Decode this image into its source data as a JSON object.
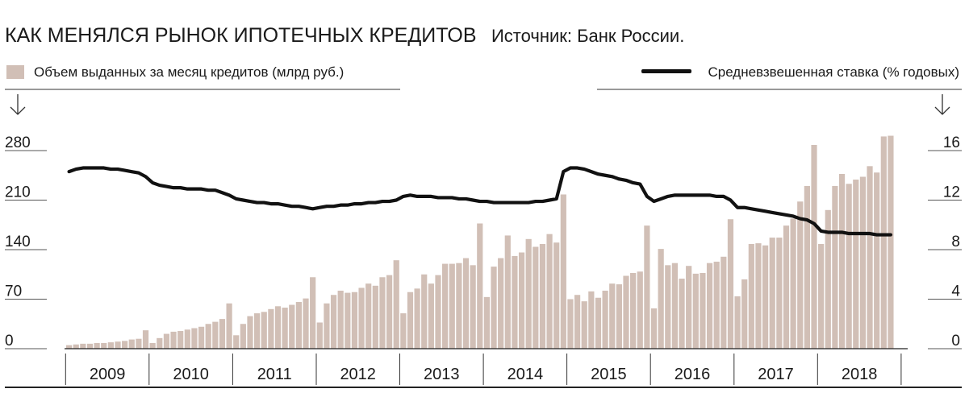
{
  "header": {
    "title": "КАК МЕНЯЛСЯ РЫНОК ИПОТЕЧНЫХ КРЕДИТОВ",
    "source": "Источник: Банк России."
  },
  "legend": {
    "bars_label": "Объем выданных за месяц кредитов (млрд руб.)",
    "line_label": "Средневзвешенная ставка (% годовых)"
  },
  "colors": {
    "bars": "#d1bfb6",
    "line": "#111111",
    "axis": "#333333"
  },
  "chart_data": {
    "type": "bar+line",
    "years": [
      "2009",
      "2010",
      "2011",
      "2012",
      "2013",
      "2014",
      "2015",
      "2016",
      "2017",
      "2018"
    ],
    "left_axis": {
      "ticks": [
        0,
        70,
        140,
        210,
        280
      ],
      "ylim": [
        0,
        280
      ]
    },
    "right_axis": {
      "ticks": [
        0,
        4,
        8,
        12,
        16
      ],
      "ylim": [
        0,
        16
      ]
    },
    "series": [
      {
        "kind": "bar",
        "values": [
          5,
          6,
          7,
          7,
          8,
          8,
          9,
          10,
          11,
          13,
          14,
          26,
          8,
          15,
          21,
          24,
          25,
          27,
          29,
          31,
          35,
          38,
          42,
          64,
          19,
          35,
          46,
          50,
          52,
          56,
          60,
          58,
          62,
          66,
          71,
          101,
          37,
          64,
          76,
          82,
          79,
          80,
          86,
          92,
          89,
          101,
          104,
          125,
          50,
          80,
          85,
          105,
          92,
          104,
          120,
          120,
          121,
          128,
          118,
          177,
          73,
          116,
          128,
          160,
          131,
          136,
          155,
          144,
          148,
          162,
          150,
          218,
          70,
          76,
          67,
          81,
          72,
          82,
          92,
          91,
          103,
          107,
          109,
          174,
          57,
          141,
          118,
          121,
          99,
          117,
          106,
          107,
          121,
          123,
          130,
          183,
          74,
          98,
          148,
          149,
          146,
          157,
          157,
          174,
          184,
          208,
          230,
          288,
          148,
          196,
          230,
          247,
          233,
          239,
          243,
          258,
          249,
          300,
          301
        ]
      },
      {
        "kind": "line",
        "values": [
          14.3,
          14.5,
          14.6,
          14.6,
          14.6,
          14.6,
          14.5,
          14.5,
          14.4,
          14.3,
          14.2,
          13.9,
          13.4,
          13.2,
          13.1,
          13.0,
          13.0,
          12.9,
          12.9,
          12.9,
          12.8,
          12.8,
          12.6,
          12.4,
          12.1,
          12.0,
          11.9,
          11.8,
          11.8,
          11.7,
          11.7,
          11.6,
          11.5,
          11.5,
          11.4,
          11.3,
          11.4,
          11.5,
          11.5,
          11.6,
          11.6,
          11.7,
          11.7,
          11.8,
          11.8,
          11.9,
          11.9,
          12.0,
          12.3,
          12.4,
          12.3,
          12.3,
          12.3,
          12.2,
          12.2,
          12.2,
          12.1,
          12.1,
          12.0,
          11.9,
          11.9,
          11.8,
          11.8,
          11.8,
          11.8,
          11.8,
          11.8,
          11.9,
          11.9,
          12.0,
          12.1,
          14.3,
          14.6,
          14.6,
          14.5,
          14.3,
          14.1,
          14.0,
          13.9,
          13.7,
          13.6,
          13.4,
          13.3,
          12.3,
          11.9,
          12.1,
          12.3,
          12.4,
          12.4,
          12.4,
          12.4,
          12.4,
          12.4,
          12.3,
          12.3,
          12.0,
          11.4,
          11.4,
          11.3,
          11.2,
          11.1,
          11.0,
          10.9,
          10.8,
          10.7,
          10.5,
          10.4,
          10.1,
          9.5,
          9.4,
          9.4,
          9.4,
          9.3,
          9.3,
          9.3,
          9.3,
          9.2,
          9.2,
          9.2
        ]
      }
    ]
  }
}
